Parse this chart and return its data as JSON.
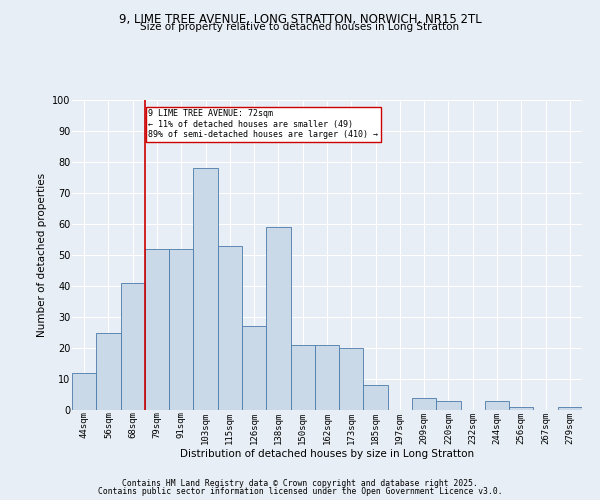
{
  "title1": "9, LIME TREE AVENUE, LONG STRATTON, NORWICH, NR15 2TL",
  "title2": "Size of property relative to detached houses in Long Stratton",
  "xlabel": "Distribution of detached houses by size in Long Stratton",
  "ylabel": "Number of detached properties",
  "footer1": "Contains HM Land Registry data © Crown copyright and database right 2025.",
  "footer2": "Contains public sector information licensed under the Open Government Licence v3.0.",
  "bin_labels": [
    "44sqm",
    "56sqm",
    "68sqm",
    "79sqm",
    "91sqm",
    "103sqm",
    "115sqm",
    "126sqm",
    "138sqm",
    "150sqm",
    "162sqm",
    "173sqm",
    "185sqm",
    "197sqm",
    "209sqm",
    "220sqm",
    "232sqm",
    "244sqm",
    "256sqm",
    "267sqm",
    "279sqm"
  ],
  "bar_values": [
    12,
    25,
    41,
    52,
    52,
    78,
    53,
    27,
    59,
    21,
    21,
    20,
    8,
    0,
    4,
    3,
    0,
    3,
    1,
    0,
    1
  ],
  "bar_color": "#c9d9e8",
  "bar_edge_color": "#4a7aab",
  "background_color": "#e8eef5",
  "grid_color": "#ffffff",
  "red_line_x": 2.5,
  "annotation_text": "9 LIME TREE AVENUE: 72sqm\n← 11% of detached houses are smaller (49)\n89% of semi-detached houses are larger (410) →",
  "annotation_box_color": "#ffffff",
  "annotation_box_edge": "#cc0000",
  "red_line_color": "#cc0000",
  "ylim": [
    0,
    100
  ],
  "yticks": [
    0,
    10,
    20,
    30,
    40,
    50,
    60,
    70,
    80,
    90,
    100
  ]
}
